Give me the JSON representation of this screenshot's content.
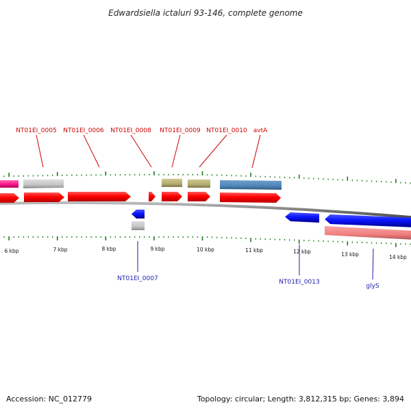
{
  "title": "Edwardsiella ictaluri 93-146, complete genome",
  "accession": "Accession: NC_012779",
  "topology": "Topology: circular; Length: 3,812,315 bp; Genes: 3,894",
  "colors": {
    "forward_cds": "#ff0000",
    "reverse_cds": "#0a14ff",
    "rna_pink": "#ff1a8c",
    "gray_feature": "#c8c8c8",
    "olive_feature": "#b5ad70",
    "steel_feature": "#4f86b8",
    "salmon_feature": "#f08080",
    "tick_green": "#1a7a1a",
    "label_forward": "#cc0000",
    "label_reverse": "#1a1aaa"
  },
  "scale_labels": [
    "6 kbp",
    "7 kbp",
    "8 kbp",
    "9 kbp",
    "10 kbp",
    "11 kbp",
    "12 kbp",
    "13 kbp",
    "14 kbp"
  ],
  "gene_labels_top": [
    "NT01EI_0005",
    "NT01EI_0006",
    "NT01EI_0008",
    "NT01EI_0009",
    "NT01EI_0010",
    "avtA"
  ],
  "gene_labels_bottom": [
    "NT01EI_0007",
    "NT01EI_0013",
    "glyS"
  ]
}
